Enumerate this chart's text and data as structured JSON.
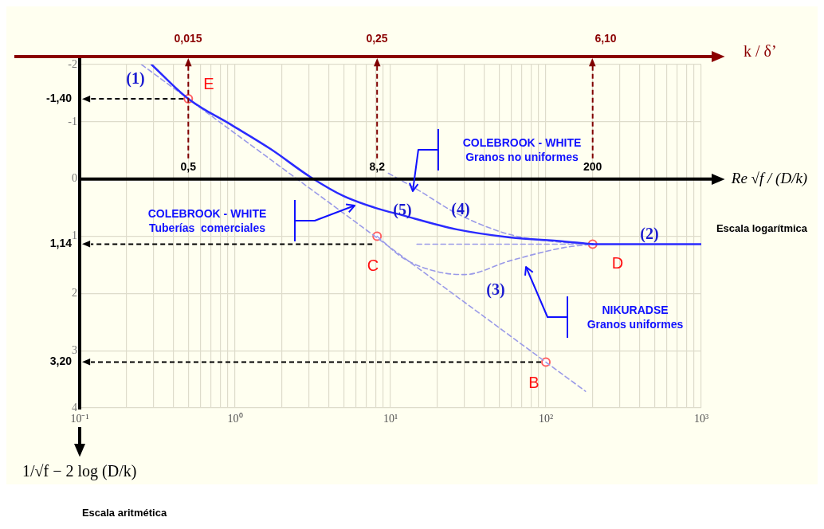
{
  "chart_data": {
    "type": "line",
    "xlabel": "Re √f / (D/k)",
    "ylabel": "1/√f − 2 log (D/k)",
    "x2label": "k / δ’",
    "log": "x",
    "grid": true,
    "legend": false,
    "xlim": [
      0.1,
      1000
    ],
    "xticks": [
      {
        "value": 0.1,
        "label": "10⁻¹"
      },
      {
        "value": 0.2,
        "label": null
      },
      {
        "value": 0.3,
        "label": null
      },
      {
        "value": 0.4,
        "label": null
      },
      {
        "value": 0.5,
        "label": null
      },
      {
        "value": 0.6,
        "label": null
      },
      {
        "value": 0.7,
        "label": null
      },
      {
        "value": 0.8,
        "label": null
      },
      {
        "value": 0.9,
        "label": null
      },
      {
        "value": 1,
        "label": "10⁰"
      },
      {
        "value": 2,
        "label": null
      },
      {
        "value": 3,
        "label": null
      },
      {
        "value": 4,
        "label": null
      },
      {
        "value": 5,
        "label": null
      },
      {
        "value": 6,
        "label": null
      },
      {
        "value": 7,
        "label": null
      },
      {
        "value": 8,
        "label": null
      },
      {
        "value": 9,
        "label": null
      },
      {
        "value": 10,
        "label": "10¹"
      },
      {
        "value": 20,
        "label": null
      },
      {
        "value": 30,
        "label": null
      },
      {
        "value": 40,
        "label": null
      },
      {
        "value": 50,
        "label": null
      },
      {
        "value": 60,
        "label": null
      },
      {
        "value": 70,
        "label": null
      },
      {
        "value": 80,
        "label": null
      },
      {
        "value": 90,
        "label": null
      },
      {
        "value": 100,
        "label": "10²"
      },
      {
        "value": 200,
        "label": null
      },
      {
        "value": 300,
        "label": null
      },
      {
        "value": 400,
        "label": null
      },
      {
        "value": 500,
        "label": null
      },
      {
        "value": 600,
        "label": null
      },
      {
        "value": 700,
        "label": null
      },
      {
        "value": 800,
        "label": null
      },
      {
        "value": 900,
        "label": null
      },
      {
        "value": 1000,
        "label": "10³"
      }
    ],
    "ylim": [
      4,
      -2
    ],
    "yticks": [
      -2,
      -1,
      0,
      1,
      2,
      3,
      4
    ],
    "series": [
      {
        "type": "line",
        "color": "#2a2aff",
        "line_style": "solid",
        "marker": "none",
        "x": [
          0.29,
          0.5,
          0.94,
          1.7,
          3.07,
          5,
          7.9,
          12.2,
          26.6,
          58.6,
          129,
          200
        ],
        "values": [
          -2.0,
          -1.4,
          -0.95,
          -0.52,
          -0.03,
          0.3,
          0.5,
          0.64,
          0.88,
          1.02,
          1.09,
          1.14
        ]
      },
      {
        "type": "line",
        "color": "#2a2aff",
        "line_style": "solid",
        "marker": "none",
        "x": [
          200,
          1000
        ],
        "values": [
          1.14,
          1.14
        ]
      },
      {
        "type": "line",
        "color": "#9a9ae8",
        "line_style": "dashed",
        "marker": "none",
        "x": [
          0.25,
          100,
          180
        ],
        "values": [
          -2.0,
          3.2,
          3.71
        ]
      },
      {
        "type": "line",
        "color": "#9a9ae8",
        "line_style": "dashed",
        "marker": "none",
        "x": [
          8.2,
          12.2,
          20,
          30,
          58.6,
          130,
          200
        ],
        "values": [
          1.0,
          1.39,
          1.62,
          1.67,
          1.43,
          1.2,
          1.14
        ]
      },
      {
        "type": "line",
        "color": "#9a9ae8",
        "line_style": "dashed",
        "marker": "none",
        "x": [
          9.7,
          14.8,
          26.6,
          58.6,
          129,
          200
        ],
        "values": [
          -0.1,
          0.18,
          0.6,
          0.97,
          1.11,
          1.14
        ]
      },
      {
        "type": "line",
        "color": "#9a9ae8",
        "line_style": "dashed",
        "marker": "none",
        "x": [
          14.8,
          200
        ],
        "values": [
          1.14,
          1.14
        ]
      },
      {
        "type": "scatter",
        "color": "#ff6060",
        "marker": "circle",
        "x": [
          0.5,
          8.2,
          200,
          100
        ],
        "values": [
          -1.4,
          1.0,
          1.14,
          3.2
        ]
      }
    ],
    "ref_lines": [
      {
        "axis": "x",
        "value": 0.5,
        "label": "0,5",
        "color": "#800000",
        "line_style": "dashed"
      },
      {
        "axis": "x",
        "value": 8.2,
        "label": "8,2",
        "color": "#800000",
        "line_style": "dashed"
      },
      {
        "axis": "x",
        "value": 200,
        "label": "200",
        "color": "#800000",
        "line_style": "dashed"
      },
      {
        "axis": "y",
        "value": -1.4,
        "label": "-1,40",
        "color": "#000000",
        "line_style": "dashed"
      },
      {
        "axis": "y",
        "value": 1.14,
        "label": "1,14",
        "color": "#000000",
        "line_style": "dashed"
      },
      {
        "axis": "y",
        "value": 3.2,
        "label": "3,20",
        "color": "#000000",
        "line_style": "dashed"
      }
    ],
    "annotations": [
      "(1)",
      "E",
      "C",
      "D",
      "B",
      "(5)",
      "(4)",
      "(3)",
      "(2)",
      "COLEBROOK - WHITE\nTuberías  comerciales",
      "COLEBROOK - WHITE\nGranos no uniformes",
      "NIKURADSE\nGranos uniformes",
      "Escala logarítmica",
      "Escala aritmética",
      "0,015",
      "0,25",
      "6,10"
    ]
  }
}
